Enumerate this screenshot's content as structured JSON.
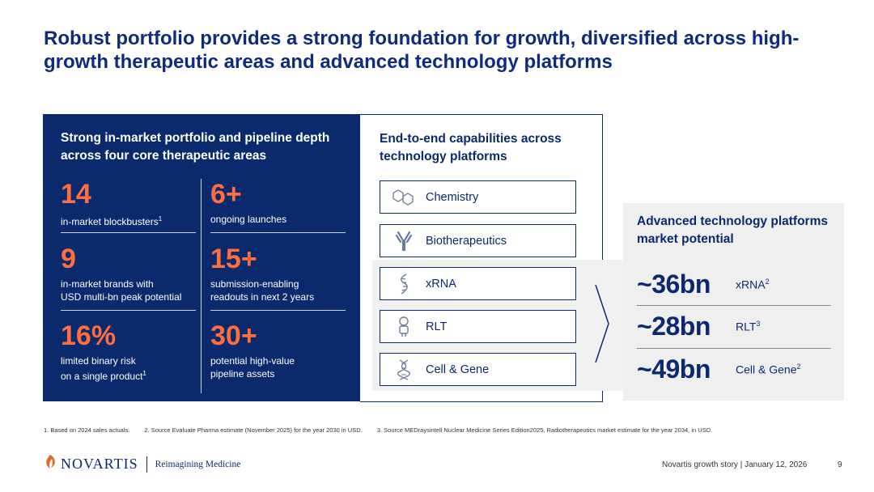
{
  "title": "Robust portfolio provides a strong foundation for growth, diversified across high-growth therapeutic areas and advanced technology platforms",
  "portfolio": {
    "heading": "Strong in-market portfolio and pipeline depth across four core therapeutic areas",
    "stats": [
      {
        "value": "14",
        "line1": "in-market blockbusters",
        "line2": "",
        "footnote": "1"
      },
      {
        "value": "6+",
        "line1": "ongoing launches",
        "line2": "",
        "footnote": ""
      },
      {
        "value": "9",
        "line1": "in-market brands with",
        "line2": "USD multi-bn peak potential",
        "footnote": ""
      },
      {
        "value": "15+",
        "line1": "submission-enabling",
        "line2": "readouts in next 2 years",
        "footnote": ""
      },
      {
        "value": "16%",
        "line1": "limited binary risk",
        "line2": "on a single product",
        "footnote": "1"
      },
      {
        "value": "30+",
        "line1": "potential high-value",
        "line2": "pipeline assets",
        "footnote": ""
      }
    ]
  },
  "platforms": {
    "heading": "End-to-end capabilities across technology platforms",
    "items": [
      {
        "label": "Chemistry",
        "icon": "chemistry-icon"
      },
      {
        "label": "Biotherapeutics",
        "icon": "antibody-icon"
      },
      {
        "label": "xRNA",
        "icon": "rna-icon"
      },
      {
        "label": "RLT",
        "icon": "radioligand-icon"
      },
      {
        "label": "Cell & Gene",
        "icon": "dna-icon"
      }
    ]
  },
  "market": {
    "heading": "Advanced technology platforms market potential",
    "rows": [
      {
        "value": "~36bn",
        "label": "xRNA",
        "footnote": "2"
      },
      {
        "value": "~28bn",
        "label": "RLT",
        "footnote": "3"
      },
      {
        "value": "~49bn",
        "label": "Cell & Gene",
        "footnote": "2"
      }
    ]
  },
  "footnotes": [
    "1. Based on 2024 sales actuals.",
    "2. Source Evaluate Pharma estimate (November 2025) for the year 2030 in USD.",
    "3. Source MEDraysintell Nuclear Medicine Series Edition2025, Radiotherapeutics market estimate for the year 2034, in USD."
  ],
  "footer": {
    "brand": "NOVARTIS",
    "tagline": "Reimagining Medicine",
    "text": "Novartis growth story | January 12, 2026",
    "page": "9"
  },
  "colors": {
    "navy": "#0b2a6e",
    "accent": "#ff6e3c",
    "gray": "#efefef"
  }
}
